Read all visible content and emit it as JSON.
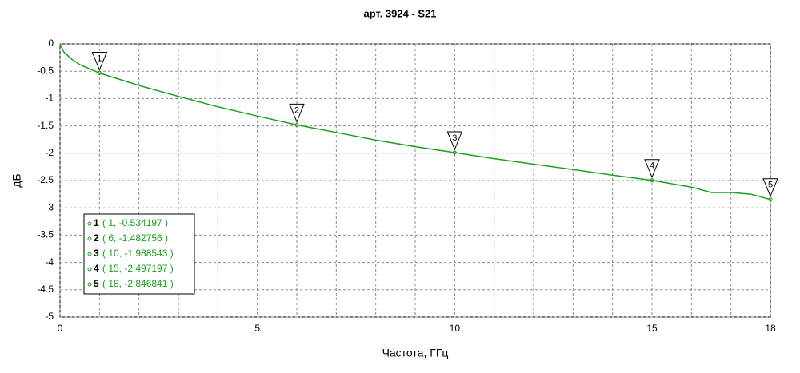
{
  "chart_data": {
    "type": "line",
    "title": "арт. 3924 - S21",
    "x_label": "Частота, ГГц",
    "y_label": "дБ",
    "color": "#1f9e1f",
    "grid": true,
    "xlim": [
      0,
      18
    ],
    "xticks": [
      0,
      5,
      10,
      15,
      18
    ],
    "xminor": [
      1,
      2,
      3,
      4,
      6,
      7,
      8,
      9,
      11,
      12,
      13,
      14,
      16,
      17
    ],
    "ylim": [
      -5,
      0
    ],
    "yticks": [
      0,
      -0.5,
      -1,
      -1.5,
      -2,
      -2.5,
      -3,
      -3.5,
      -4,
      -4.5,
      -5
    ],
    "x": [
      0,
      0.1,
      0.3,
      0.5,
      1,
      2,
      3,
      4,
      5,
      6,
      7,
      8,
      9,
      10,
      11,
      12,
      13,
      14,
      15,
      16,
      16.5,
      17,
      17.5,
      18
    ],
    "values": [
      0,
      -0.15,
      -0.28,
      -0.38,
      -0.534197,
      -0.76,
      -0.96,
      -1.15,
      -1.32,
      -1.482756,
      -1.62,
      -1.76,
      -1.88,
      -1.988543,
      -2.1,
      -2.2,
      -2.3,
      -2.4,
      -2.497197,
      -2.62,
      -2.72,
      -2.72,
      -2.75,
      -2.846841
    ],
    "markers": [
      {
        "label": "1",
        "x": 1,
        "y": -0.534197,
        "text": "( 1, -0.534197 )"
      },
      {
        "label": "2",
        "x": 6,
        "y": -1.482756,
        "text": "( 6, -1.482756 )"
      },
      {
        "label": "3",
        "x": 10,
        "y": -1.988543,
        "text": "( 10, -1.988543 )"
      },
      {
        "label": "4",
        "x": 15,
        "y": -2.497197,
        "text": "( 15, -2.497197 )"
      },
      {
        "label": "5",
        "x": 18,
        "y": -2.846841,
        "text": "( 18, -2.846841 )"
      }
    ]
  }
}
